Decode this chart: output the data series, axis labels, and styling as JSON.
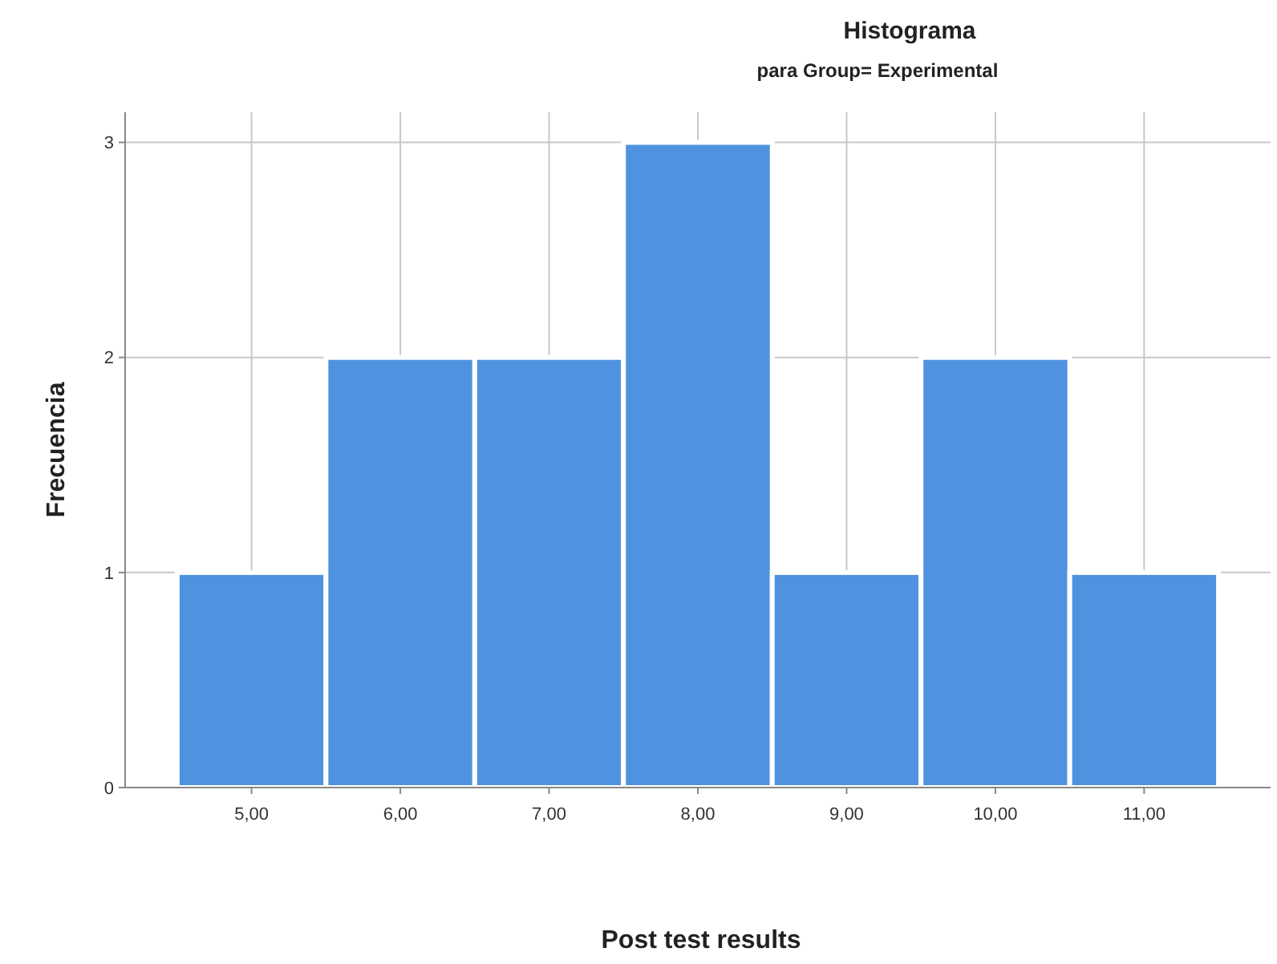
{
  "chart_data": {
    "type": "histogram",
    "title": "Histograma",
    "subtitle": "para Group= Experimental",
    "xlabel": "Post test results",
    "ylabel": "Frecuencia",
    "bins": [
      4.5,
      5.5,
      6.5,
      7.5,
      8.5,
      9.5,
      10.5,
      11.5
    ],
    "values": [
      1,
      2,
      2,
      3,
      1,
      2,
      1
    ],
    "color": "#4f92e0",
    "xlim": [
      4.15,
      11.85
    ],
    "xticks": [
      {
        "value": 5,
        "label": "5,00"
      },
      {
        "value": 6,
        "label": "6,00"
      },
      {
        "value": 7,
        "label": "7,00"
      },
      {
        "value": 8,
        "label": "8,00"
      },
      {
        "value": 9,
        "label": "9,00"
      },
      {
        "value": 10,
        "label": "10,00"
      },
      {
        "value": 11,
        "label": "11,00"
      }
    ],
    "ylim": [
      0,
      3.14
    ],
    "yticks": [
      0,
      1,
      2,
      3
    ],
    "grid": true
  }
}
